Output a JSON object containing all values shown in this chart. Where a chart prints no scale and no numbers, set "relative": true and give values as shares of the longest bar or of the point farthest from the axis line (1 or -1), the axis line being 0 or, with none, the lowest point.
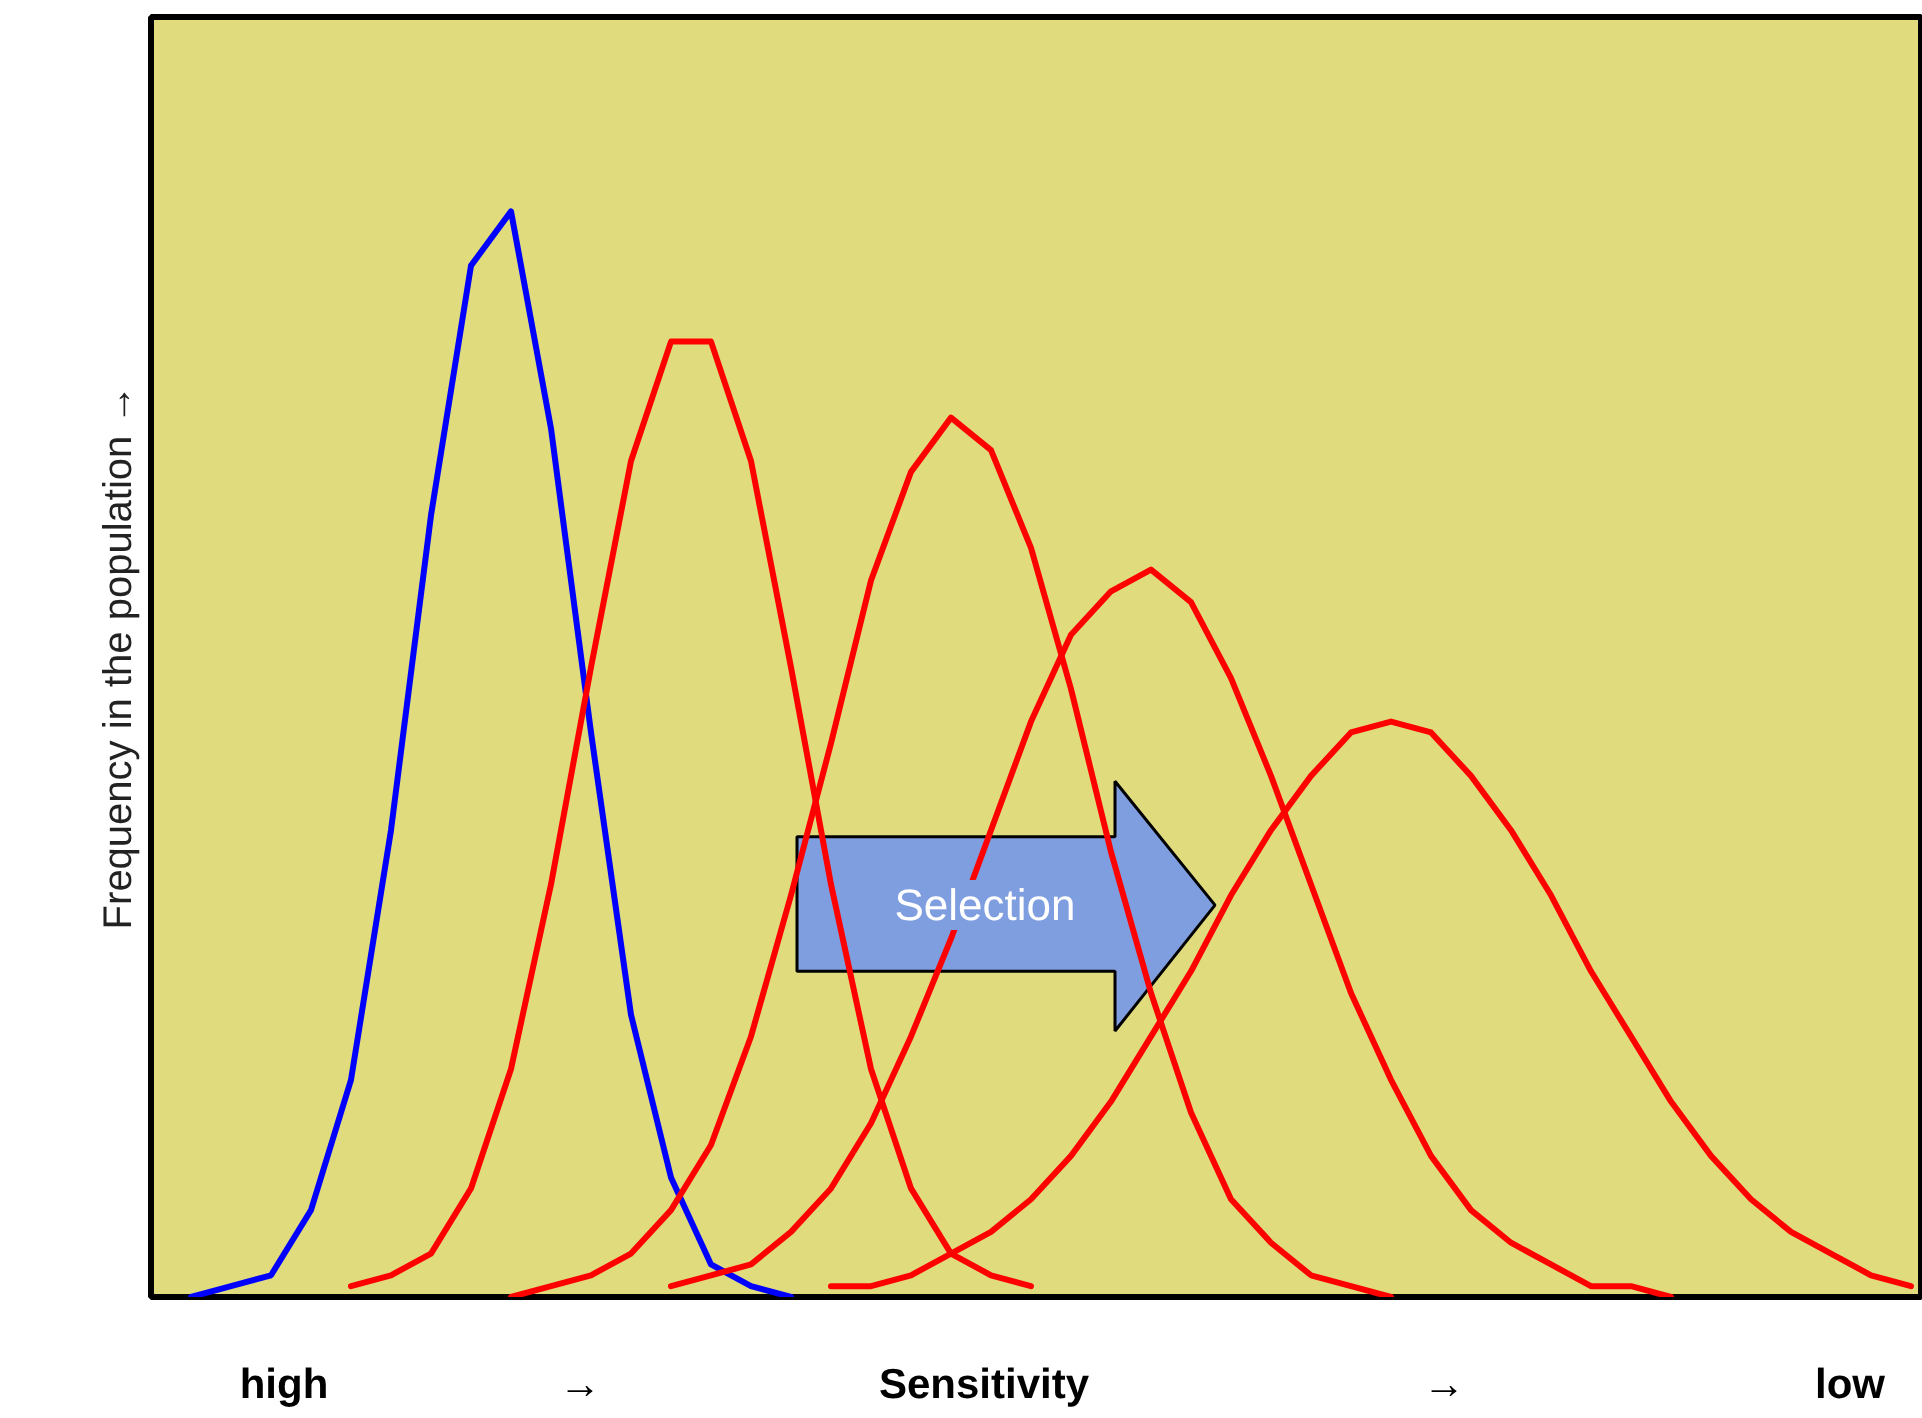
{
  "chart_data": {
    "type": "line",
    "relative": true,
    "xlabel": "Sensitivity",
    "ylabel": "Frequency in the population →",
    "categories": [
      null,
      null,
      null,
      null,
      null,
      null,
      null,
      null,
      null,
      null,
      null,
      null,
      null,
      null,
      null,
      null,
      null,
      null,
      null,
      null,
      null,
      null,
      null,
      null,
      null,
      null,
      null,
      null,
      null,
      null,
      null,
      null,
      null,
      null,
      null,
      null,
      null,
      null,
      null,
      null,
      null,
      null,
      null,
      null
    ],
    "series": [
      {
        "color": "#0000ff",
        "values": [
          0.0,
          0.01,
          0.02,
          0.08,
          0.2,
          0.43,
          0.72,
          0.95,
          1.0,
          0.8,
          0.52,
          0.26,
          0.11,
          0.03,
          0.01,
          0.0,
          null,
          null,
          null,
          null,
          null,
          null,
          null,
          null,
          null,
          null,
          null,
          null,
          null,
          null,
          null,
          null,
          null,
          null,
          null,
          null,
          null,
          null,
          null,
          null,
          null,
          null,
          null,
          null
        ]
      },
      {
        "color": "#ff0000",
        "values": [
          null,
          null,
          null,
          null,
          0.01,
          0.02,
          0.04,
          0.1,
          0.21,
          0.38,
          0.58,
          0.77,
          0.88,
          0.88,
          0.77,
          0.58,
          0.38,
          0.21,
          0.1,
          0.04,
          0.02,
          0.01,
          null,
          null,
          null,
          null,
          null,
          null,
          null,
          null,
          null,
          null,
          null,
          null,
          null,
          null,
          null,
          null,
          null,
          null,
          null,
          null,
          null,
          null
        ]
      },
      {
        "color": "#ff0000",
        "values": [
          null,
          null,
          null,
          null,
          null,
          null,
          null,
          null,
          0.0,
          0.01,
          0.02,
          0.04,
          0.08,
          0.14,
          0.24,
          0.37,
          0.51,
          0.66,
          0.76,
          0.81,
          0.78,
          0.69,
          0.56,
          0.41,
          0.28,
          0.17,
          0.09,
          0.05,
          0.02,
          0.01,
          0.0,
          null,
          null,
          null,
          null,
          null,
          null,
          null,
          null,
          null,
          null,
          null,
          null,
          null
        ]
      },
      {
        "color": "#ff0000",
        "values": [
          null,
          null,
          null,
          null,
          null,
          null,
          null,
          null,
          null,
          null,
          null,
          null,
          0.01,
          0.02,
          0.03,
          0.06,
          0.1,
          0.16,
          0.24,
          0.33,
          0.43,
          0.53,
          0.61,
          0.65,
          0.67,
          0.64,
          0.57,
          0.48,
          0.38,
          0.28,
          0.2,
          0.13,
          0.08,
          0.05,
          0.03,
          0.01,
          0.01,
          0.0,
          null,
          null,
          null,
          null,
          null,
          null
        ]
      },
      {
        "color": "#ff0000",
        "values": [
          null,
          null,
          null,
          null,
          null,
          null,
          null,
          null,
          null,
          null,
          null,
          null,
          null,
          null,
          null,
          null,
          0.01,
          0.01,
          0.02,
          0.04,
          0.06,
          0.09,
          0.13,
          0.18,
          0.24,
          0.3,
          0.37,
          0.43,
          0.48,
          0.52,
          0.53,
          0.52,
          0.48,
          0.43,
          0.37,
          0.3,
          0.24,
          0.18,
          0.13,
          0.09,
          0.06,
          0.04,
          0.02,
          0.01
        ]
      }
    ],
    "annotations": [
      "high",
      "→",
      "→",
      "low",
      "Selection"
    ]
  }
}
